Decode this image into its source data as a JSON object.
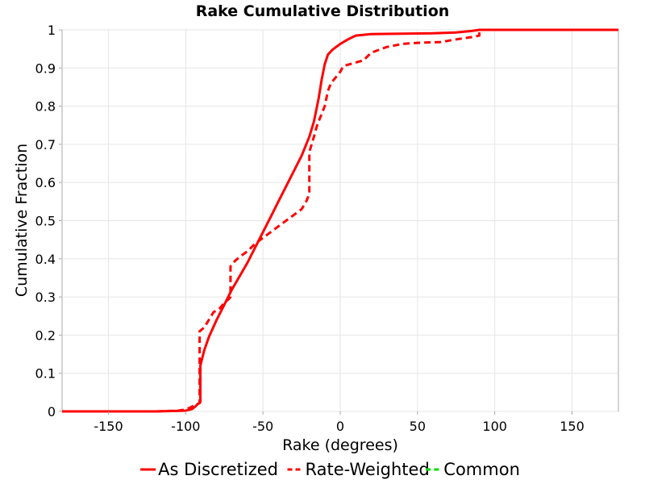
{
  "chart_data": {
    "type": "line",
    "title": "Rake Cumulative Distribution",
    "xlabel": "Rake (degrees)",
    "ylabel": "Cumulative Fraction",
    "xlim": [
      -180,
      180
    ],
    "ylim": [
      0,
      1
    ],
    "x_ticks": [
      "-150",
      "-100",
      "-50",
      "0",
      "50",
      "100",
      "150"
    ],
    "x_tick_values": [
      -150,
      -100,
      -50,
      0,
      50,
      100,
      150
    ],
    "y_ticks": [
      "0",
      "0.1",
      "0.2",
      "0.3",
      "0.4",
      "0.5",
      "0.6",
      "0.7",
      "0.8",
      "0.9",
      "1"
    ],
    "y_tick_values": [
      0,
      0.1,
      0.2,
      0.3,
      0.4,
      0.5,
      0.6,
      0.7,
      0.8,
      0.9,
      1
    ],
    "grid": true,
    "legend_position": "bottom",
    "series": [
      {
        "name": "As Discretized",
        "color": "#ff0000",
        "dash": "solid",
        "points": [
          [
            -180,
            0
          ],
          [
            -120,
            0.0
          ],
          [
            -100,
            0.002
          ],
          [
            -96,
            0.006
          ],
          [
            -94,
            0.012
          ],
          [
            -92,
            0.02
          ],
          [
            -91,
            0.022
          ],
          [
            -90.5,
            0.025
          ],
          [
            -90.5,
            0.12
          ],
          [
            -88,
            0.16
          ],
          [
            -85,
            0.195
          ],
          [
            -80,
            0.24
          ],
          [
            -75,
            0.28
          ],
          [
            -70,
            0.32
          ],
          [
            -65,
            0.355
          ],
          [
            -60,
            0.39
          ],
          [
            -55,
            0.43
          ],
          [
            -50,
            0.47
          ],
          [
            -45,
            0.51
          ],
          [
            -40,
            0.55
          ],
          [
            -35,
            0.59
          ],
          [
            -30,
            0.63
          ],
          [
            -25,
            0.67
          ],
          [
            -20,
            0.72
          ],
          [
            -17,
            0.76
          ],
          [
            -14,
            0.82
          ],
          [
            -12,
            0.87
          ],
          [
            -10,
            0.91
          ],
          [
            -8,
            0.935
          ],
          [
            -5,
            0.948
          ],
          [
            0,
            0.963
          ],
          [
            5,
            0.975
          ],
          [
            10,
            0.985
          ],
          [
            20,
            0.989
          ],
          [
            40,
            0.99
          ],
          [
            60,
            0.991
          ],
          [
            75,
            0.993
          ],
          [
            85,
            0.997
          ],
          [
            90,
            1.0
          ],
          [
            180,
            1.0
          ]
        ]
      },
      {
        "name": "Rate-Weighted",
        "color": "#ff0000",
        "dash": "dashed",
        "points": [
          [
            -180,
            0
          ],
          [
            -120,
            0.0
          ],
          [
            -105,
            0.002
          ],
          [
            -100,
            0.005
          ],
          [
            -97,
            0.01
          ],
          [
            -95,
            0.015
          ],
          [
            -92,
            0.02
          ],
          [
            -91,
            0.022
          ],
          [
            -91,
            0.21
          ],
          [
            -88,
            0.22
          ],
          [
            -85,
            0.24
          ],
          [
            -82,
            0.26
          ],
          [
            -78,
            0.27
          ],
          [
            -75,
            0.285
          ],
          [
            -72,
            0.295
          ],
          [
            -71,
            0.3
          ],
          [
            -71,
            0.38
          ],
          [
            -68,
            0.395
          ],
          [
            -65,
            0.405
          ],
          [
            -60,
            0.42
          ],
          [
            -55,
            0.44
          ],
          [
            -50,
            0.455
          ],
          [
            -45,
            0.47
          ],
          [
            -40,
            0.485
          ],
          [
            -35,
            0.5
          ],
          [
            -30,
            0.515
          ],
          [
            -25,
            0.53
          ],
          [
            -22,
            0.55
          ],
          [
            -20,
            0.57
          ],
          [
            -20,
            0.68
          ],
          [
            -17,
            0.72
          ],
          [
            -15,
            0.75
          ],
          [
            -12,
            0.78
          ],
          [
            -10,
            0.8
          ],
          [
            -8,
            0.84
          ],
          [
            -6,
            0.86
          ],
          [
            -3,
            0.875
          ],
          [
            0,
            0.89
          ],
          [
            2,
            0.905
          ],
          [
            8,
            0.912
          ],
          [
            15,
            0.92
          ],
          [
            20,
            0.94
          ],
          [
            30,
            0.955
          ],
          [
            40,
            0.963
          ],
          [
            50,
            0.966
          ],
          [
            65,
            0.968
          ],
          [
            75,
            0.975
          ],
          [
            85,
            0.981
          ],
          [
            90,
            0.985
          ],
          [
            90,
            1.0
          ],
          [
            180,
            1.0
          ]
        ]
      },
      {
        "name": "Common",
        "color": "#00dd00",
        "dash": "dashed",
        "points": []
      }
    ]
  }
}
